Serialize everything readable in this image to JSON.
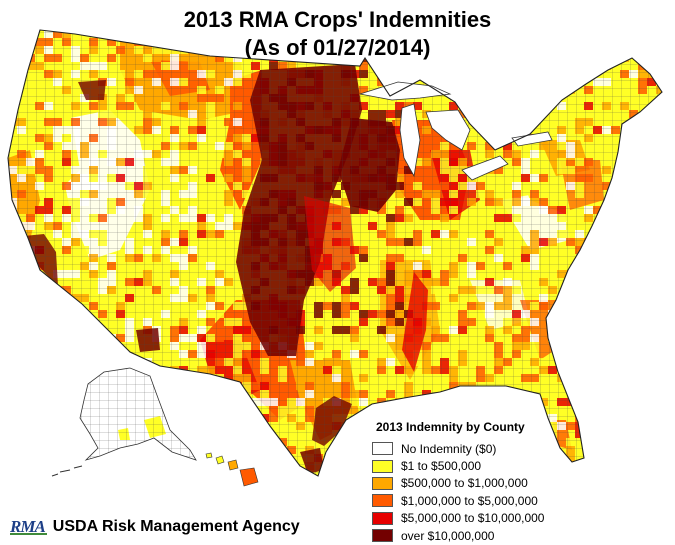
{
  "map": {
    "title_line1": "2013 RMA Crops' Indemnities",
    "title_line2": "(As of 01/27/2014)",
    "legend_title": "2013 Indemnity by County",
    "legend": [
      {
        "label": "No Indemnity ($0)",
        "color": "#ffffff"
      },
      {
        "label": "$1 to $500,000",
        "color": "#ffff26"
      },
      {
        "label": "$500,000 to $1,000,000",
        "color": "#ffa800"
      },
      {
        "label": "$1,000,000 to $5,000,000",
        "color": "#ff5a00"
      },
      {
        "label": "$5,000,000 to $10,000,000",
        "color": "#e60000"
      },
      {
        "label": "over $10,000,000",
        "color": "#730000"
      }
    ],
    "footer": {
      "logo_text": "RMA",
      "agency": "USDA Risk Management Agency"
    }
  }
}
